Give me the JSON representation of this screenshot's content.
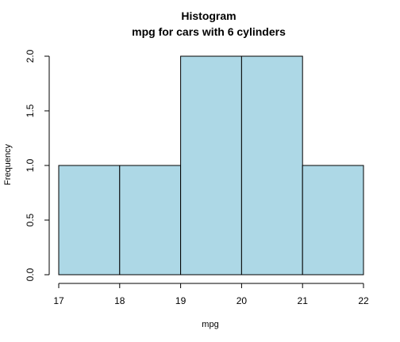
{
  "chart_data": {
    "type": "bar",
    "title": "Histogram",
    "subtitle": "mpg for cars with  6 cylinders",
    "xlabel": "mpg",
    "ylabel": "Frequency",
    "bins": [
      {
        "from": 17,
        "to": 18,
        "count": 1
      },
      {
        "from": 18,
        "to": 19,
        "count": 1
      },
      {
        "from": 19,
        "to": 20,
        "count": 2
      },
      {
        "from": 20,
        "to": 21,
        "count": 2
      },
      {
        "from": 21,
        "to": 22,
        "count": 1
      }
    ],
    "xlim": [
      17,
      22
    ],
    "ylim": [
      0,
      2
    ],
    "x_ticks": [
      "17",
      "18",
      "19",
      "20",
      "21",
      "22"
    ],
    "y_ticks": [
      "0.0",
      "0.5",
      "1.0",
      "1.5",
      "2.0"
    ],
    "bar_color": "#add8e6",
    "edge_color": "#000000",
    "grid": false,
    "legend": "none"
  }
}
